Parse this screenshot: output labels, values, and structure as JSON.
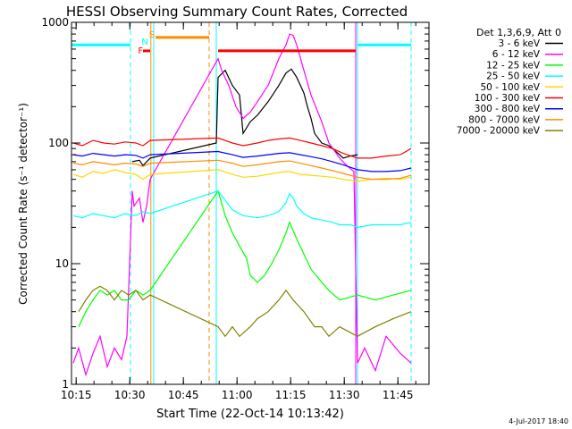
{
  "chart_data": {
    "type": "line",
    "title": "HESSI Observing Summary Count Rates, Corrected",
    "xlabel": "Start Time (22-Oct-14 10:13:42)",
    "ylabel": "Corrected Count Rate (s⁻¹ detector⁻¹)",
    "yscale": "log",
    "ylim": [
      1,
      1000
    ],
    "xlim_minutes": [
      0,
      100
    ],
    "x_unit": "minutes since 10:13:42",
    "xticks": [
      {
        "label": "10:15",
        "m": 1.3
      },
      {
        "label": "10:30",
        "m": 16.3
      },
      {
        "label": "10:45",
        "m": 31.3
      },
      {
        "label": "11:00",
        "m": 46.3
      },
      {
        "label": "11:15",
        "m": 61.3
      },
      {
        "label": "11:30",
        "m": 76.3
      },
      {
        "label": "11:45",
        "m": 91.3
      }
    ],
    "yticks": [
      {
        "label": "1",
        "v": 1
      },
      {
        "label": "10",
        "v": 10
      },
      {
        "label": "100",
        "v": 100
      },
      {
        "label": "1000",
        "v": 1000
      }
    ],
    "legend_header": "Det 1,3,6,9, Att 0",
    "legend_position": "right",
    "timestamp": "4-Jul-2017 18:40",
    "series": [
      {
        "name": "3 - 6 keV",
        "color": "#000000",
        "x": [
          17,
          19,
          20,
          22,
          40.5,
          41,
          43,
          45,
          47,
          48,
          50,
          52,
          55,
          58,
          60,
          61.5,
          63,
          65,
          66,
          67,
          68,
          70,
          72,
          75,
          76,
          78,
          80
        ],
        "y": [
          70,
          72,
          65,
          75,
          100,
          350,
          400,
          300,
          250,
          120,
          150,
          170,
          220,
          300,
          380,
          410,
          350,
          260,
          200,
          160,
          120,
          100,
          95,
          80,
          75,
          78,
          80
        ]
      },
      {
        "name": "6 - 12 keV",
        "color": "#ff00ff",
        "x": [
          0.5,
          2,
          4,
          6,
          8,
          10,
          12,
          14,
          15.5,
          17,
          17.5,
          19,
          20,
          21,
          22,
          41,
          42,
          44,
          46,
          48,
          50,
          52,
          55,
          58,
          60,
          61,
          62,
          63,
          65,
          67,
          70,
          72,
          75,
          77,
          79,
          80,
          82,
          85,
          88,
          92,
          95
        ],
        "y": [
          1.5,
          2,
          1.2,
          1.8,
          2.5,
          1.4,
          2,
          1.6,
          2.5,
          40,
          30,
          35,
          22,
          30,
          50,
          500,
          400,
          300,
          200,
          160,
          180,
          220,
          300,
          500,
          650,
          800,
          780,
          650,
          400,
          250,
          150,
          100,
          75,
          65,
          58,
          1.5,
          2,
          1.3,
          2.5,
          1.8,
          1.5
        ]
      },
      {
        "name": "12 - 25 keV",
        "color": "#00ff00",
        "x": [
          2,
          4,
          6,
          8,
          10,
          12,
          14,
          16,
          18,
          20,
          22,
          41,
          43,
          45,
          47,
          49,
          50,
          52,
          54,
          56,
          58,
          60,
          61,
          63,
          65,
          67,
          70,
          72,
          75,
          80,
          85,
          90,
          95
        ],
        "y": [
          3,
          4,
          5,
          6,
          5.5,
          6,
          5,
          5,
          6,
          5.5,
          6,
          40,
          25,
          18,
          14,
          11,
          8,
          7,
          8,
          10,
          13,
          18,
          22,
          16,
          12,
          9,
          7,
          6,
          5,
          5.5,
          5,
          5.5,
          6
        ]
      },
      {
        "name": "25 - 50 keV",
        "color": "#00ffff",
        "x": [
          0.5,
          3,
          6,
          9,
          12,
          15,
          18,
          20,
          22,
          41,
          45,
          48,
          52,
          55,
          58,
          60,
          61,
          62,
          63,
          65,
          67,
          70,
          73,
          75,
          78,
          80,
          84,
          88,
          92,
          95
        ],
        "y": [
          25,
          24,
          26,
          25,
          24,
          26,
          25,
          27,
          26,
          40,
          28,
          25,
          24,
          25,
          27,
          32,
          38,
          35,
          30,
          26,
          24,
          23,
          22,
          21,
          21,
          20,
          21,
          21,
          21,
          22
        ]
      },
      {
        "name": "50 - 100 keV",
        "color": "#ffd700",
        "x": [
          0.5,
          3,
          6,
          9,
          12,
          15,
          18,
          20,
          22,
          41,
          45,
          48,
          52,
          55,
          58,
          61,
          64,
          67,
          70,
          73,
          76,
          80,
          84,
          88,
          92,
          95
        ],
        "y": [
          55,
          52,
          58,
          56,
          60,
          57,
          55,
          50,
          55,
          60,
          55,
          52,
          53,
          55,
          57,
          58,
          55,
          54,
          53,
          52,
          50,
          48,
          50,
          51,
          50,
          52
        ]
      },
      {
        "name": "100 - 300 keV",
        "color": "#ff0000",
        "x": [
          0.5,
          3,
          6,
          9,
          12,
          15,
          18,
          20,
          22,
          41,
          45,
          48,
          52,
          55,
          58,
          61,
          64,
          67,
          70,
          73,
          76,
          80,
          84,
          88,
          92,
          95
        ],
        "y": [
          100,
          95,
          105,
          100,
          98,
          102,
          100,
          95,
          105,
          110,
          100,
          95,
          100,
          105,
          108,
          110,
          105,
          100,
          95,
          90,
          82,
          75,
          75,
          78,
          80,
          90
        ]
      },
      {
        "name": "300 - 800 keV",
        "color": "#0000ff",
        "x": [
          0.5,
          3,
          6,
          9,
          12,
          15,
          18,
          20,
          22,
          41,
          45,
          48,
          52,
          55,
          58,
          61,
          64,
          67,
          70,
          73,
          76,
          80,
          84,
          88,
          92,
          95
        ],
        "y": [
          80,
          78,
          82,
          80,
          78,
          80,
          79,
          75,
          80,
          85,
          80,
          76,
          78,
          80,
          82,
          83,
          80,
          77,
          74,
          70,
          66,
          60,
          58,
          58,
          59,
          62
        ]
      },
      {
        "name": "800 - 7000 keV",
        "color": "#ff8c00",
        "x": [
          0.5,
          3,
          6,
          9,
          12,
          15,
          18,
          20,
          22,
          41,
          45,
          48,
          52,
          55,
          58,
          61,
          64,
          67,
          70,
          73,
          76,
          80,
          84,
          88,
          92,
          95
        ],
        "y": [
          68,
          66,
          70,
          68,
          66,
          68,
          67,
          64,
          68,
          72,
          68,
          64,
          66,
          68,
          70,
          71,
          68,
          65,
          62,
          59,
          56,
          52,
          50,
          50,
          51,
          54
        ]
      },
      {
        "name": "7000 - 20000 keV",
        "color": "#808000",
        "x": [
          2,
          4,
          6,
          8,
          10,
          12,
          14,
          16,
          18,
          20,
          22,
          41,
          43,
          45,
          47,
          50,
          52,
          55,
          58,
          60,
          62,
          65,
          68,
          70,
          72,
          75,
          80,
          85,
          90,
          95
        ],
        "y": [
          4,
          5,
          6,
          6.5,
          6,
          5,
          6,
          5.5,
          6,
          5,
          5.5,
          3,
          2.5,
          3,
          2.5,
          3,
          3.5,
          4,
          5,
          6,
          5,
          4,
          3,
          3,
          2.5,
          3,
          2.5,
          3,
          3.5,
          4
        ]
      }
    ],
    "annotations": [
      {
        "text": "S",
        "x": 22.5,
        "color": "#ff8c00"
      },
      {
        "text": "N",
        "x": 20.5,
        "color": "#00ffff"
      },
      {
        "text": "F",
        "x": 19.3,
        "color": "#ff0000"
      }
    ],
    "bars": [
      {
        "color": "#00ffff",
        "x": [
          0,
          16.5
        ],
        "y": 650
      },
      {
        "color": "#ff8c00",
        "x": [
          23.5,
          38.5
        ],
        "y": 750
      },
      {
        "color": "#ff0000",
        "x": [
          20,
          22
        ],
        "y": 580
      },
      {
        "color": "#ff0000",
        "x": [
          41,
          79.5
        ],
        "y": 580
      },
      {
        "color": "#00ffff",
        "x": [
          80,
          95
        ],
        "y": 650
      }
    ],
    "vlines": [
      {
        "x": 16.5,
        "color": "#00ffff",
        "dashed": true
      },
      {
        "x": 22.2,
        "color": "#ff8c00",
        "dashed": false
      },
      {
        "x": 23,
        "color": "#00ffff",
        "dashed": false
      },
      {
        "x": 38.5,
        "color": "#ff8c00",
        "dashed": true
      },
      {
        "x": 40.5,
        "color": "#00ffff",
        "dashed": false
      },
      {
        "x": 79.5,
        "color": "#ff00ff",
        "dashed": false
      },
      {
        "x": 80,
        "color": "#00ffff",
        "dashed": false
      },
      {
        "x": 95,
        "color": "#00ffff",
        "dashed": true
      }
    ]
  }
}
